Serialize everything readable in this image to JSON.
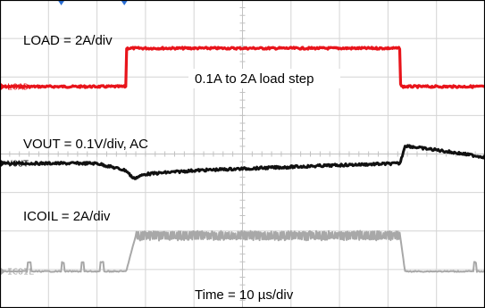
{
  "chart_data": {
    "type": "line",
    "title": "",
    "xlabel": "Time = 10 µs/div",
    "ylabel": "",
    "grid": true,
    "divisions": {
      "horizontal": 10,
      "vertical": 8
    },
    "x_unit": "µs",
    "xlim": [
      0,
      100
    ],
    "trigger_time_us": 26,
    "cursor_time_us": 13,
    "channel_markers": [
      {
        "name": "LOAD",
        "color": "#e8141b"
      },
      {
        "name": "VOUT",
        "color": "#111111"
      },
      {
        "name": "ICOIL",
        "color": "#a8a8a8"
      }
    ],
    "annotations": {
      "load_scale": "LOAD = 2A/div",
      "load_step": "0.1A to 2A load step",
      "vout_scale": "VOUT = 0.1V/div, AC",
      "icoil_scale": "ICOIL = 2A/div",
      "time_scale": "Time = 10 µs/div"
    },
    "series": [
      {
        "name": "LOAD",
        "color": "#e8141b",
        "unit": "A",
        "x": [
          0,
          26,
          26.1,
          82.5,
          82.6,
          100
        ],
        "y": [
          0.1,
          0.1,
          2.0,
          2.0,
          0.1,
          0.1
        ]
      },
      {
        "name": "VOUT",
        "color": "#111111",
        "unit": "mV (AC)",
        "x": [
          0,
          10,
          20,
          26,
          27.5,
          30,
          40,
          50,
          60,
          70,
          82.5,
          83.5,
          87,
          90,
          100,
          103
        ],
        "y": [
          0,
          0,
          0,
          -8,
          -17,
          -12,
          -8,
          -6,
          -4,
          -2,
          0,
          20,
          17,
          15,
          7,
          5
        ]
      },
      {
        "name": "ICOIL",
        "color": "#a8a8a8",
        "unit": "A",
        "x": [
          0,
          26,
          28,
          82.5,
          83.5,
          100
        ],
        "y": [
          0.1,
          0.1,
          2.1,
          2.1,
          0.1,
          0.1
        ]
      }
    ]
  }
}
